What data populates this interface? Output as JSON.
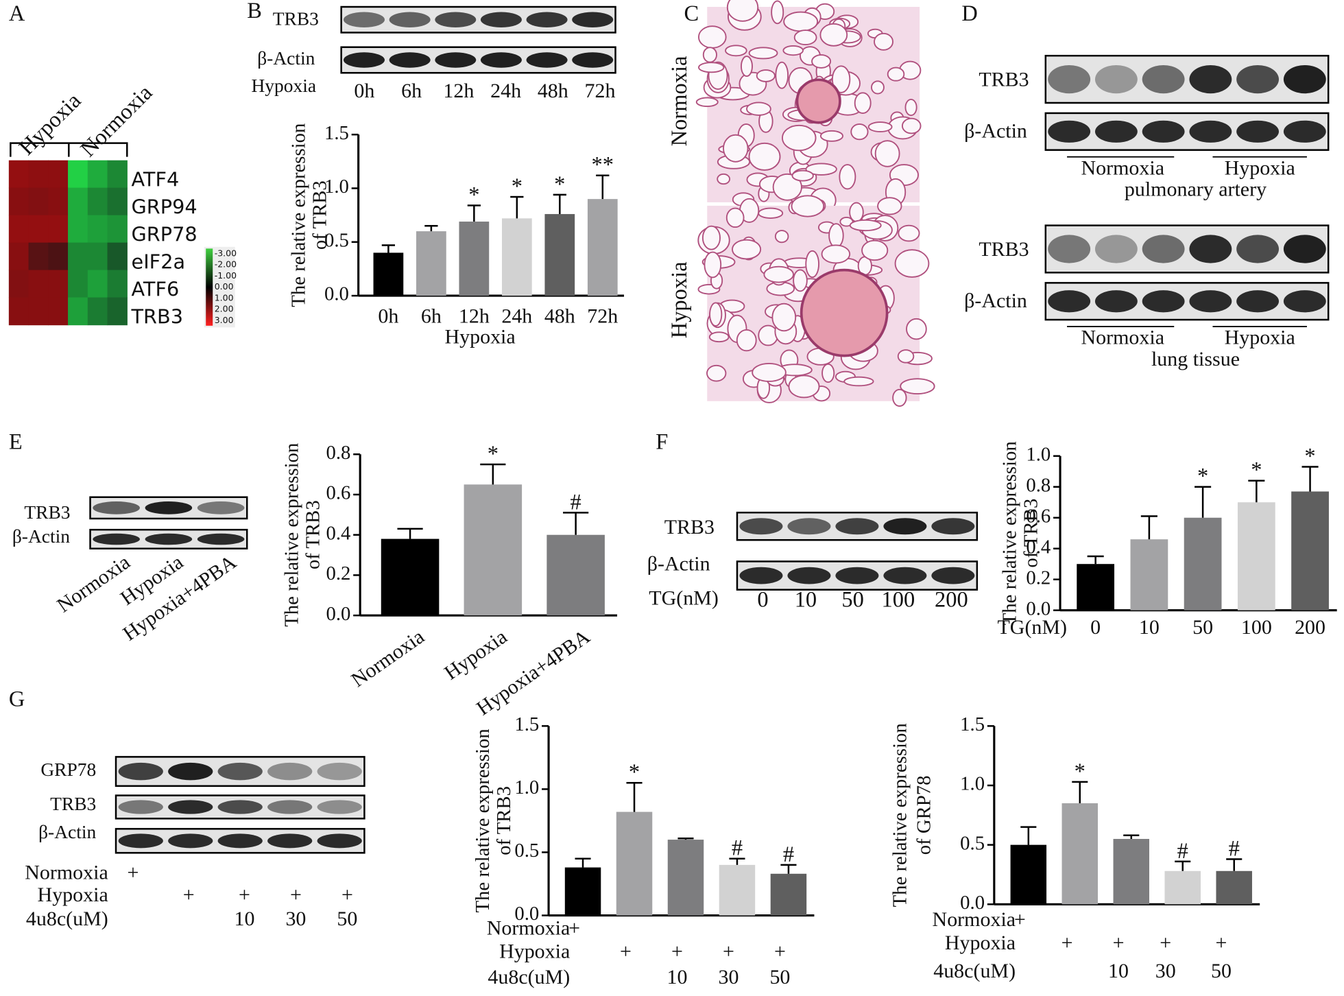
{
  "panels": {
    "A": {
      "letter": "A",
      "groups": [
        "Hypoxia",
        "Normoxia"
      ],
      "genes": [
        "ATF4",
        "GRP94",
        "GRP78",
        "eIF2a",
        "ATF6",
        "TRB3"
      ],
      "values": [
        [
          1.8,
          1.7,
          1.7,
          -2.8,
          -2.2,
          -1.6
        ],
        [
          1.6,
          1.5,
          1.6,
          -2.2,
          -1.6,
          -1.2
        ],
        [
          1.8,
          1.8,
          1.8,
          -2.2,
          -2.0,
          -1.8
        ],
        [
          1.6,
          0.8,
          0.6,
          -1.6,
          -1.6,
          -0.8
        ],
        [
          1.5,
          1.6,
          1.6,
          -1.6,
          -2.0,
          -1.4
        ],
        [
          1.6,
          1.6,
          1.6,
          -2.0,
          -1.4,
          -1.0
        ]
      ],
      "scale": [
        "-3.00",
        "-2.00",
        "-1.00",
        "0.00",
        "1.00",
        "2.00",
        "3.00"
      ]
    },
    "B": {
      "letter": "B",
      "rows": [
        "TRB3",
        "β-Actin"
      ],
      "condition": "Hypoxia",
      "lanes": [
        "0h",
        "6h",
        "12h",
        "24h",
        "48h",
        "72h"
      ]
    },
    "C": {
      "letter": "C",
      "rows": [
        "Normoxia",
        "Hypoxia"
      ]
    },
    "D": {
      "letter": "D",
      "blots": [
        {
          "rows": [
            "TRB3",
            "β-Actin"
          ],
          "groups": [
            "Normoxia",
            "Hypoxia"
          ],
          "tissue": "pulmonary artery"
        },
        {
          "rows": [
            "TRB3",
            "β-Actin"
          ],
          "groups": [
            "Normoxia",
            "Hypoxia"
          ],
          "tissue": "lung tissue"
        }
      ]
    },
    "E": {
      "letter": "E",
      "rows": [
        "TRB3",
        "β-Actin"
      ],
      "lanes": [
        "Normoxia",
        "Hypoxia",
        "Hypoxia+4PBA"
      ]
    },
    "F": {
      "letter": "F",
      "rows": [
        "TRB3",
        "β-Actin"
      ],
      "condition": "TG(nM)",
      "lanes": [
        "0",
        "10",
        "50",
        "100",
        "200"
      ]
    },
    "G": {
      "letter": "G",
      "rows": [
        "GRP78",
        "TRB3",
        "β-Actin"
      ],
      "treatments": [
        {
          "name": "Normoxia",
          "marks": [
            "+",
            null,
            null,
            null,
            null
          ]
        },
        {
          "name": "Hypoxia",
          "marks": [
            null,
            "+",
            "+",
            "+",
            "+"
          ]
        },
        {
          "name": "4u8c(uM)",
          "marks": [
            null,
            null,
            "10",
            "30",
            "50"
          ]
        }
      ]
    }
  },
  "chart_data": [
    {
      "type": "bar",
      "ylabel": [
        "The relative expression",
        "of TRB3"
      ],
      "xlabel": "Hypoxia",
      "categories": [
        "0h",
        "6h",
        "12h",
        "24h",
        "48h",
        "72h"
      ],
      "values": [
        0.4,
        0.6,
        0.69,
        0.72,
        0.76,
        0.9
      ],
      "errors": [
        0.07,
        0.05,
        0.15,
        0.2,
        0.18,
        0.22
      ],
      "annotations": [
        null,
        null,
        "*",
        "*",
        "*",
        "**"
      ],
      "colors": [
        "#000000",
        "#a3a3a5",
        "#7d7d7f",
        "#d2d2d2",
        "#5f5f5f",
        "#a3a3a5"
      ],
      "ylim": [
        0,
        1.5
      ],
      "yticks": [
        {
          "value": 0,
          "label": "0.0"
        },
        {
          "value": 0.5,
          "label": "0.5"
        },
        {
          "value": 1,
          "label": "1.0"
        },
        {
          "value": 1.5,
          "label": "1.5"
        }
      ]
    },
    {
      "type": "bar",
      "ylabel": [
        "The relative expression",
        "of TRB3"
      ],
      "categories": [
        "Normoxia",
        "Hypoxia",
        "Hypoxia+4PBA"
      ],
      "values": [
        0.38,
        0.65,
        0.4
      ],
      "errors": [
        0.05,
        0.1,
        0.11
      ],
      "annotations": [
        null,
        "*",
        "#"
      ],
      "colors": [
        "#000000",
        "#a3a3a5",
        "#7d7d7f"
      ],
      "ylim": [
        0,
        0.8
      ],
      "yticks": [
        {
          "value": 0,
          "label": "0.0"
        },
        {
          "value": 0.2,
          "label": "0.2"
        },
        {
          "value": 0.4,
          "label": "0.4"
        },
        {
          "value": 0.6,
          "label": "0.6"
        },
        {
          "value": 0.8,
          "label": "0.8"
        }
      ]
    },
    {
      "type": "bar",
      "ylabel": [
        "The relative expression",
        "of TRB3"
      ],
      "xlabel": "TG(nM)",
      "categories": [
        "0",
        "10",
        "50",
        "100",
        "200"
      ],
      "values": [
        0.3,
        0.46,
        0.6,
        0.7,
        0.77
      ],
      "errors": [
        0.05,
        0.15,
        0.2,
        0.14,
        0.16
      ],
      "annotations": [
        null,
        null,
        "*",
        "*",
        "*"
      ],
      "colors": [
        "#000000",
        "#a3a3a5",
        "#7d7d7f",
        "#d2d2d2",
        "#5f5f5f"
      ],
      "ylim": [
        0,
        1
      ],
      "yticks": [
        {
          "value": 0,
          "label": "0.0"
        },
        {
          "value": 0.2,
          "label": "0.2"
        },
        {
          "value": 0.4,
          "label": "0.4"
        },
        {
          "value": 0.6,
          "label": "0.6"
        },
        {
          "value": 0.8,
          "label": "0.8"
        },
        {
          "value": 1,
          "label": "1.0"
        }
      ]
    },
    {
      "type": "bar",
      "ylabel": [
        "The relative expression",
        "of TRB3"
      ],
      "categories": [
        null,
        null,
        null,
        null,
        null
      ],
      "values": [
        0.38,
        0.82,
        0.6,
        0.4,
        0.33
      ],
      "errors": [
        0.07,
        0.23,
        0.01,
        0.05,
        0.07
      ],
      "annotations": [
        null,
        "*",
        null,
        "#",
        "#"
      ],
      "colors": [
        "#000000",
        "#a3a3a5",
        "#7d7d7f",
        "#d2d2d2",
        "#5f5f5f"
      ],
      "ylim": [
        0,
        1.5
      ],
      "yticks": [
        {
          "value": 0,
          "label": "0.0"
        },
        {
          "value": 0.5,
          "label": "0.5"
        },
        {
          "value": 1,
          "label": "1.0"
        },
        {
          "value": 1.5,
          "label": "1.5"
        }
      ],
      "treatments": [
        {
          "name": "Normoxia",
          "marks": [
            "+",
            null,
            null,
            null,
            null
          ]
        },
        {
          "name": "Hypoxia",
          "marks": [
            null,
            "+",
            "+",
            "+",
            "+"
          ]
        },
        {
          "name": "4u8c(uM)",
          "marks": [
            null,
            null,
            "10",
            "30",
            "50"
          ]
        }
      ]
    },
    {
      "type": "bar",
      "ylabel": [
        "The relative expression",
        "of GRP78"
      ],
      "categories": [
        null,
        null,
        null,
        null,
        null
      ],
      "values": [
        0.5,
        0.85,
        0.55,
        0.28,
        0.28
      ],
      "errors": [
        0.15,
        0.18,
        0.03,
        0.08,
        0.1
      ],
      "annotations": [
        null,
        "*",
        null,
        "#",
        "#"
      ],
      "colors": [
        "#000000",
        "#a3a3a5",
        "#7d7d7f",
        "#d2d2d2",
        "#5f5f5f"
      ],
      "ylim": [
        0,
        1.5
      ],
      "yticks": [
        {
          "value": 0,
          "label": "0.0"
        },
        {
          "value": 0.5,
          "label": "0.5"
        },
        {
          "value": 1,
          "label": "1.0"
        },
        {
          "value": 1.5,
          "label": "1.5"
        }
      ],
      "treatments": [
        {
          "name": "Normoxia",
          "marks": [
            "+",
            null,
            null,
            null,
            null
          ]
        },
        {
          "name": "Hypoxia",
          "marks": [
            null,
            "+",
            "+",
            "+",
            "+"
          ]
        },
        {
          "name": "4u8c(uM)",
          "marks": [
            null,
            null,
            "10",
            "30",
            "50"
          ]
        }
      ]
    }
  ]
}
